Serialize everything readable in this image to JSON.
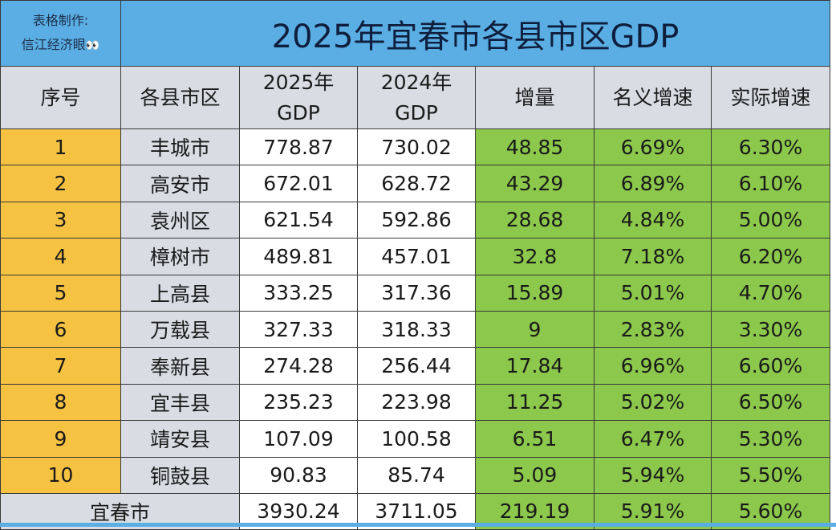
{
  "credit": {
    "line1": "表格制作:",
    "line2": "信江经济眼",
    "emoji": "👀"
  },
  "title": "2025年宜春市各县市区GDP",
  "colors": {
    "header_blue": "#5aaee3",
    "gray": "#d9dce3",
    "rank_orange": "#f5c242",
    "growth_green": "#8cc84b"
  },
  "headers": [
    "序号",
    "各县市区",
    "2025年\nGDP",
    "2024年\nGDP",
    "增量",
    "名义增速",
    "实际增速"
  ],
  "header_parts": {
    "gdp2025_a": "2025年",
    "gdp2025_b": "GDP",
    "gdp2024_a": "2024年",
    "gdp2024_b": "GDP"
  },
  "rows": [
    {
      "rank": "1",
      "name": "丰城市",
      "gdp2025": "778.87",
      "gdp2024": "730.02",
      "increase": "48.85",
      "nominal": "6.69%",
      "real": "6.30%"
    },
    {
      "rank": "2",
      "name": "高安市",
      "gdp2025": "672.01",
      "gdp2024": "628.72",
      "increase": "43.29",
      "nominal": "6.89%",
      "real": "6.10%"
    },
    {
      "rank": "3",
      "name": "袁州区",
      "gdp2025": "621.54",
      "gdp2024": "592.86",
      "increase": "28.68",
      "nominal": "4.84%",
      "real": "5.00%"
    },
    {
      "rank": "4",
      "name": "樟树市",
      "gdp2025": "489.81",
      "gdp2024": "457.01",
      "increase": "32.8",
      "nominal": "7.18%",
      "real": "6.20%"
    },
    {
      "rank": "5",
      "name": "上高县",
      "gdp2025": "333.25",
      "gdp2024": "317.36",
      "increase": "15.89",
      "nominal": "5.01%",
      "real": "4.70%"
    },
    {
      "rank": "6",
      "name": "万载县",
      "gdp2025": "327.33",
      "gdp2024": "318.33",
      "increase": "9",
      "nominal": "2.83%",
      "real": "3.30%"
    },
    {
      "rank": "7",
      "name": "奉新县",
      "gdp2025": "274.28",
      "gdp2024": "256.44",
      "increase": "17.84",
      "nominal": "6.96%",
      "real": "6.60%"
    },
    {
      "rank": "8",
      "name": "宜丰县",
      "gdp2025": "235.23",
      "gdp2024": "223.98",
      "increase": "11.25",
      "nominal": "5.02%",
      "real": "6.50%"
    },
    {
      "rank": "9",
      "name": "靖安县",
      "gdp2025": "107.09",
      "gdp2024": "100.58",
      "increase": "6.51",
      "nominal": "6.47%",
      "real": "5.30%"
    },
    {
      "rank": "10",
      "name": "铜鼓县",
      "gdp2025": "90.83",
      "gdp2024": "85.74",
      "increase": "5.09",
      "nominal": "5.94%",
      "real": "5.50%"
    }
  ],
  "total": {
    "name": "宜春市",
    "gdp2025": "3930.24",
    "gdp2024": "3711.05",
    "increase": "219.19",
    "nominal": "5.91%",
    "real": "5.60%"
  }
}
